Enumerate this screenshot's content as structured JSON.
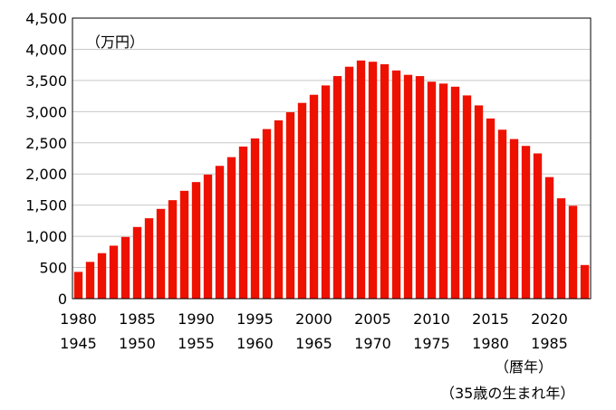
{
  "chart_data": {
    "type": "bar",
    "unit_label": "（万円）",
    "xlabel_line1": "（暦年）",
    "xlabel_line2": "（35歳の生まれ年）",
    "ylim": [
      0,
      4500
    ],
    "yticks": [
      0,
      500,
      1000,
      1500,
      2000,
      2500,
      3000,
      3500,
      4000,
      4500
    ],
    "ytick_labels": [
      "0",
      "500",
      "1,000",
      "1,500",
      "2,000",
      "2,500",
      "3,000",
      "3,500",
      "4,000",
      "4,500"
    ],
    "grid": true,
    "bar_color": "#ee1100",
    "x_start": 1980,
    "tick_years": [
      1980,
      1985,
      1990,
      1995,
      2000,
      2005,
      2010,
      2015,
      2020
    ],
    "tick_labels_row1": [
      "1980",
      "1985",
      "1990",
      "1995",
      "2000",
      "2005",
      "2010",
      "2015",
      "2020"
    ],
    "tick_labels_row2": [
      "1945",
      "1950",
      "1955",
      "1960",
      "1965",
      "1970",
      "1975",
      "1980",
      "1985"
    ],
    "categories": [
      1980,
      1981,
      1982,
      1983,
      1984,
      1985,
      1986,
      1987,
      1988,
      1989,
      1990,
      1991,
      1992,
      1993,
      1994,
      1995,
      1996,
      1997,
      1998,
      1999,
      2000,
      2001,
      2002,
      2003,
      2004,
      2005,
      2006,
      2007,
      2008,
      2009,
      2010,
      2011,
      2012,
      2013,
      2014,
      2015,
      2016,
      2017,
      2018,
      2019,
      2020,
      2021,
      2022,
      2023
    ],
    "values": [
      430,
      590,
      730,
      850,
      990,
      1150,
      1290,
      1440,
      1580,
      1730,
      1870,
      1990,
      2130,
      2270,
      2440,
      2570,
      2720,
      2860,
      2990,
      3140,
      3270,
      3420,
      3570,
      3720,
      3820,
      3800,
      3760,
      3660,
      3590,
      3570,
      3480,
      3450,
      3400,
      3260,
      3100,
      2890,
      2710,
      2560,
      2450,
      2330,
      1950,
      1610,
      1490,
      540
    ]
  }
}
